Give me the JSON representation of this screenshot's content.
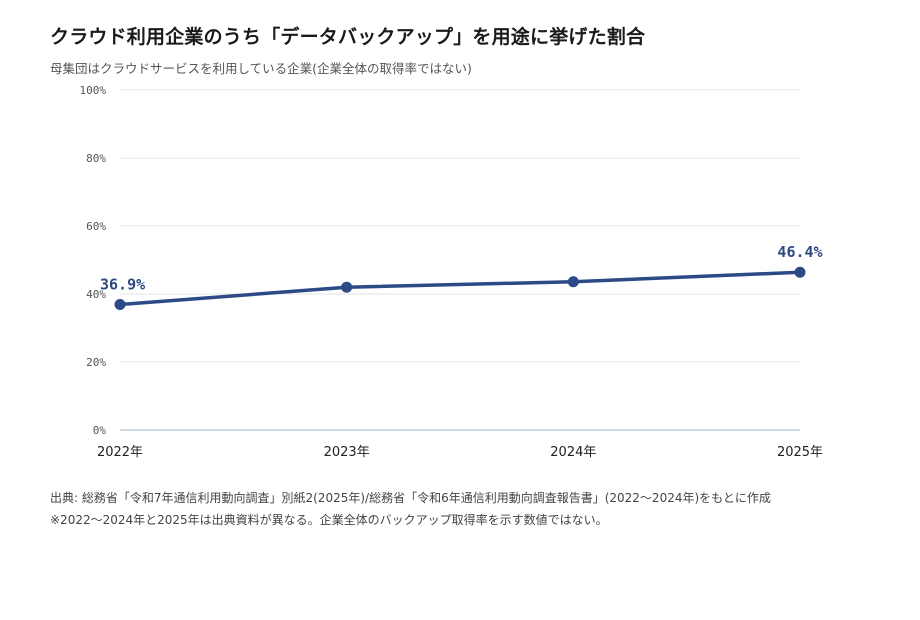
{
  "title": "クラウド利用企業のうち「データバックアップ」を用途に挙げた割合",
  "subtitle": "母集団はクラウドサービスを利用している企業(企業全体の取得率ではない)",
  "source": "出典: 総務省「令和7年通信利用動向調査」別紙2(2025年)/総務省「令和6年通信利用動向調査報告書」(2022〜2024年)をもとに作成",
  "note": "※2022〜2024年と2025年は出典資料が異なる。企業全体のバックアップ取得率を示す数値ではない。",
  "colors": {
    "line": "#2c4a85",
    "grid": "#e6e6e6",
    "axis": "#b8c2d6"
  },
  "chart_data": {
    "type": "line",
    "categories": [
      "2022年",
      "2023年",
      "2024年",
      "2025年"
    ],
    "series": [
      {
        "values": [
          36.9,
          42.0,
          43.6,
          46.4
        ]
      }
    ],
    "data_labels": [
      {
        "index": 0,
        "text": "36.9%"
      },
      {
        "index": 3,
        "text": "46.4%"
      }
    ],
    "y_ticks": [
      {
        "value": 0,
        "label": "0%"
      },
      {
        "value": 20,
        "label": "20%"
      },
      {
        "value": 40,
        "label": "40%"
      },
      {
        "value": 60,
        "label": "60%"
      },
      {
        "value": 80,
        "label": "80%"
      },
      {
        "value": 100,
        "label": "100%"
      }
    ],
    "ylim": [
      0,
      100
    ],
    "grid": true,
    "legend": false
  }
}
